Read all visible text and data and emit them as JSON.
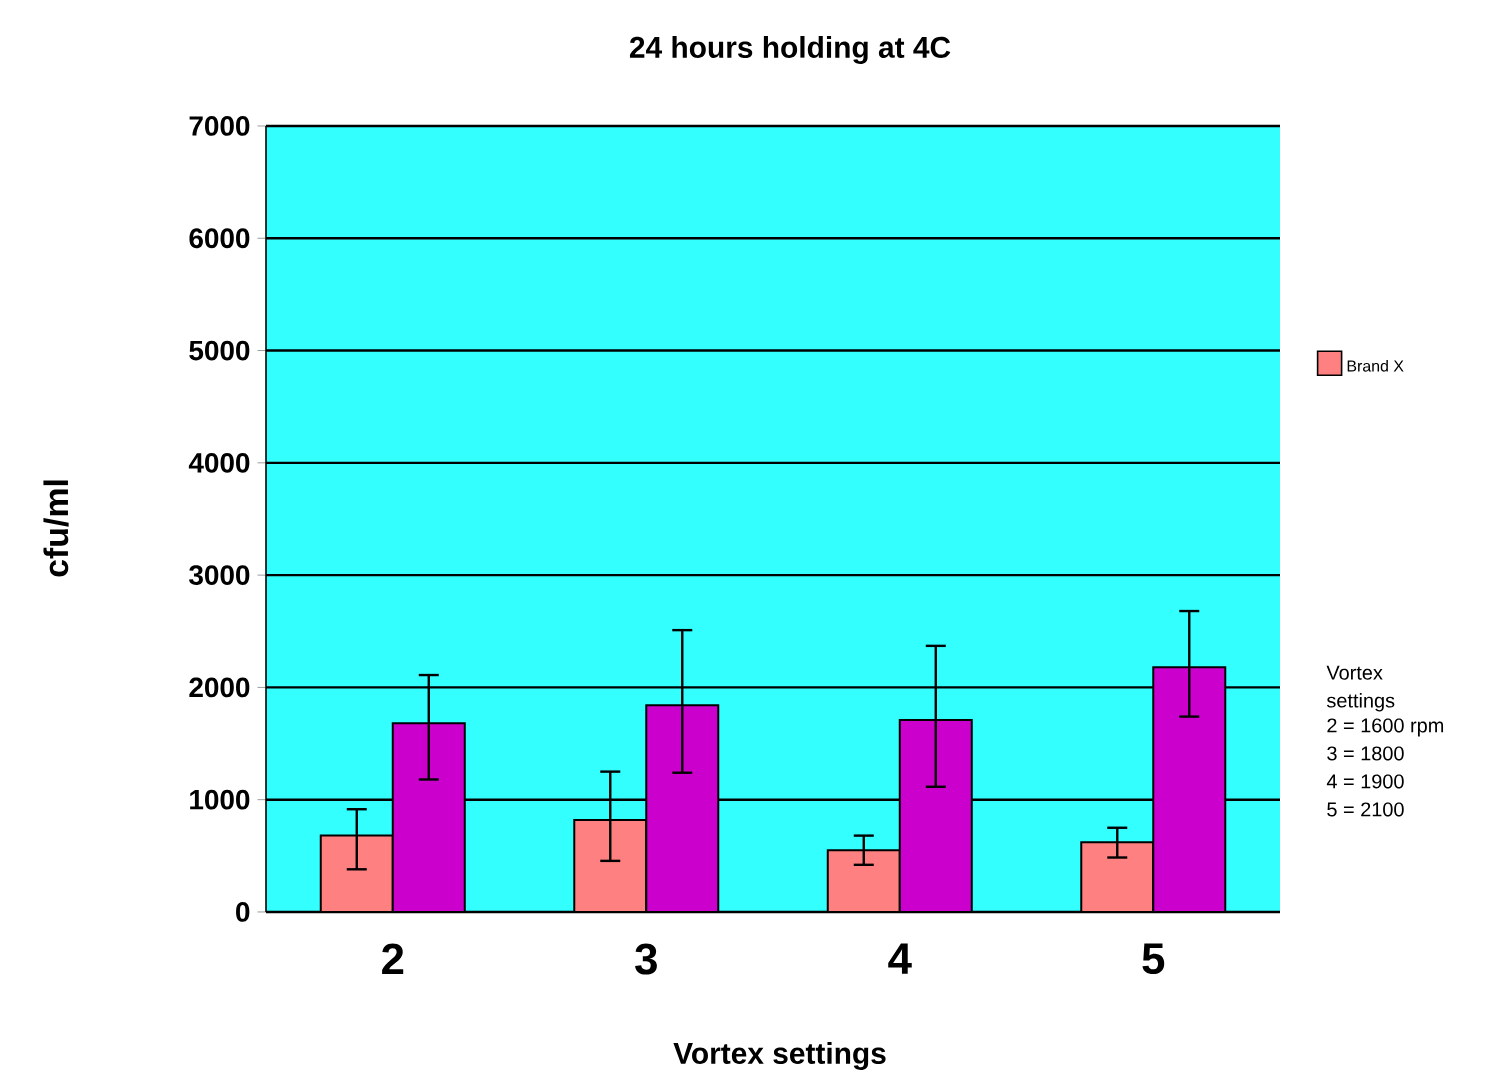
{
  "chart_data": {
    "type": "bar",
    "title": "24 hours holding at 4C",
    "xlabel": "Vortex settings",
    "ylabel": "cfu/ml",
    "categories": [
      "2",
      "3",
      "4",
      "5"
    ],
    "series": [
      {
        "name": "Brand X",
        "color": "#ff8080",
        "values": [
          680,
          820,
          550,
          620
        ],
        "errors": [
          [
            380,
            915
          ],
          [
            455,
            1250
          ],
          [
            420,
            680
          ],
          [
            485,
            750
          ]
        ]
      },
      {
        "color": "#cc00cc",
        "values": [
          1680,
          1840,
          1710,
          2180
        ],
        "errors": [
          [
            1180,
            2110
          ],
          [
            1240,
            2510
          ],
          [
            1115,
            2370
          ],
          [
            1740,
            2680
          ]
        ]
      }
    ],
    "ylim": [
      0,
      7000
    ],
    "yticks": [
      0,
      1000,
      2000,
      3000,
      4000,
      5000,
      6000,
      7000
    ],
    "grid": "y",
    "legend": "right",
    "annotations": [
      "Vortex settings",
      "2 = 1600 rpm",
      "3 = 1800",
      "4 = 1900",
      "5 = 2100"
    ]
  }
}
